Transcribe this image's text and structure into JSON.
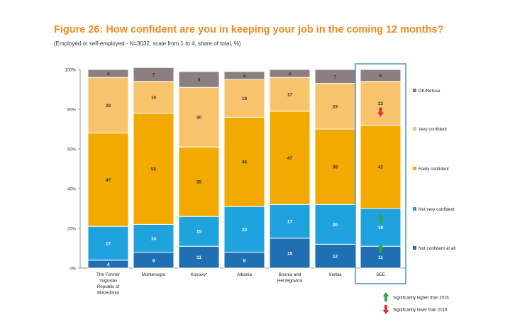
{
  "figure": {
    "title": "Figure 26: How confident are you in keeping your job in the coming 12 months?",
    "subtitle": "(Employed or self-employed - N=3032, scale from 1 to 4, share of total, %)"
  },
  "chart_data": {
    "type": "bar",
    "stacked": true,
    "title": "Figure 26: How confident are you in keeping your job in the coming 12 months?",
    "subtitle": "(Employed or self-employed - N=3032, scale from 1 to 4, share of total, %)",
    "ylim": [
      0,
      100
    ],
    "yticks": [
      "0%",
      "20%",
      "40%",
      "60%",
      "80%",
      "100%"
    ],
    "categories": [
      [
        "The Former",
        "Yugoslav",
        "Republic of",
        "Macedonia"
      ],
      [
        "Montenegro"
      ],
      [
        "Kosovo*"
      ],
      [
        "Albania"
      ],
      [
        "Bosnia and",
        "Herzegovina"
      ],
      [
        "Serbia"
      ],
      [
        "SEE"
      ]
    ],
    "series": [
      {
        "name": "Not confident at all",
        "color": "#1f6fb2",
        "values": [
          4,
          8,
          11,
          8,
          15,
          12,
          11
        ],
        "labels": [
          "4",
          "8",
          "11",
          "8",
          "15",
          "12",
          "11"
        ]
      },
      {
        "name": "Not very confident",
        "color": "#1fa3de",
        "values": [
          17,
          14,
          15,
          23,
          17,
          20,
          19
        ],
        "labels": [
          "17",
          "14",
          "15",
          "23",
          "17",
          "20",
          "19"
        ]
      },
      {
        "name": "Fairly confident",
        "color": "#f2a900",
        "values": [
          47,
          56,
          35,
          45,
          47,
          38,
          42
        ],
        "labels": [
          "47",
          "56",
          "35",
          "45",
          "47",
          "38",
          "42"
        ]
      },
      {
        "name": "Very confident",
        "color": "#f7c46c",
        "values": [
          28,
          16,
          30,
          19,
          17,
          23,
          22
        ],
        "labels": [
          "28",
          "16",
          "30",
          "19",
          "17",
          "23",
          "22"
        ]
      },
      {
        "name": "DK/Refuse",
        "color": "#8c7f80",
        "values": [
          4,
          7,
          8,
          4,
          4,
          7,
          6
        ],
        "labels": [
          "4",
          "7",
          "8",
          "4",
          "4",
          "7",
          "6"
        ]
      }
    ],
    "legend": [
      "DK/Refuse",
      "Very confident",
      "Fairly confident",
      "Not very confident",
      "Not confident at all"
    ],
    "highlight_category": "SEE",
    "significance_markers": [
      {
        "category": "SEE",
        "series": "Very confident",
        "direction": "lower"
      },
      {
        "category": "SEE",
        "series": "Not very confident",
        "direction": "higher"
      },
      {
        "category": "SEE",
        "series": "Not confident at all",
        "direction": "higher"
      }
    ],
    "significance_legend": [
      {
        "direction": "higher",
        "label": "Significantly higher than 2016",
        "color": "#2aa84a"
      },
      {
        "direction": "lower",
        "label": "Significantly lower than 2016",
        "color": "#e03030"
      }
    ]
  }
}
